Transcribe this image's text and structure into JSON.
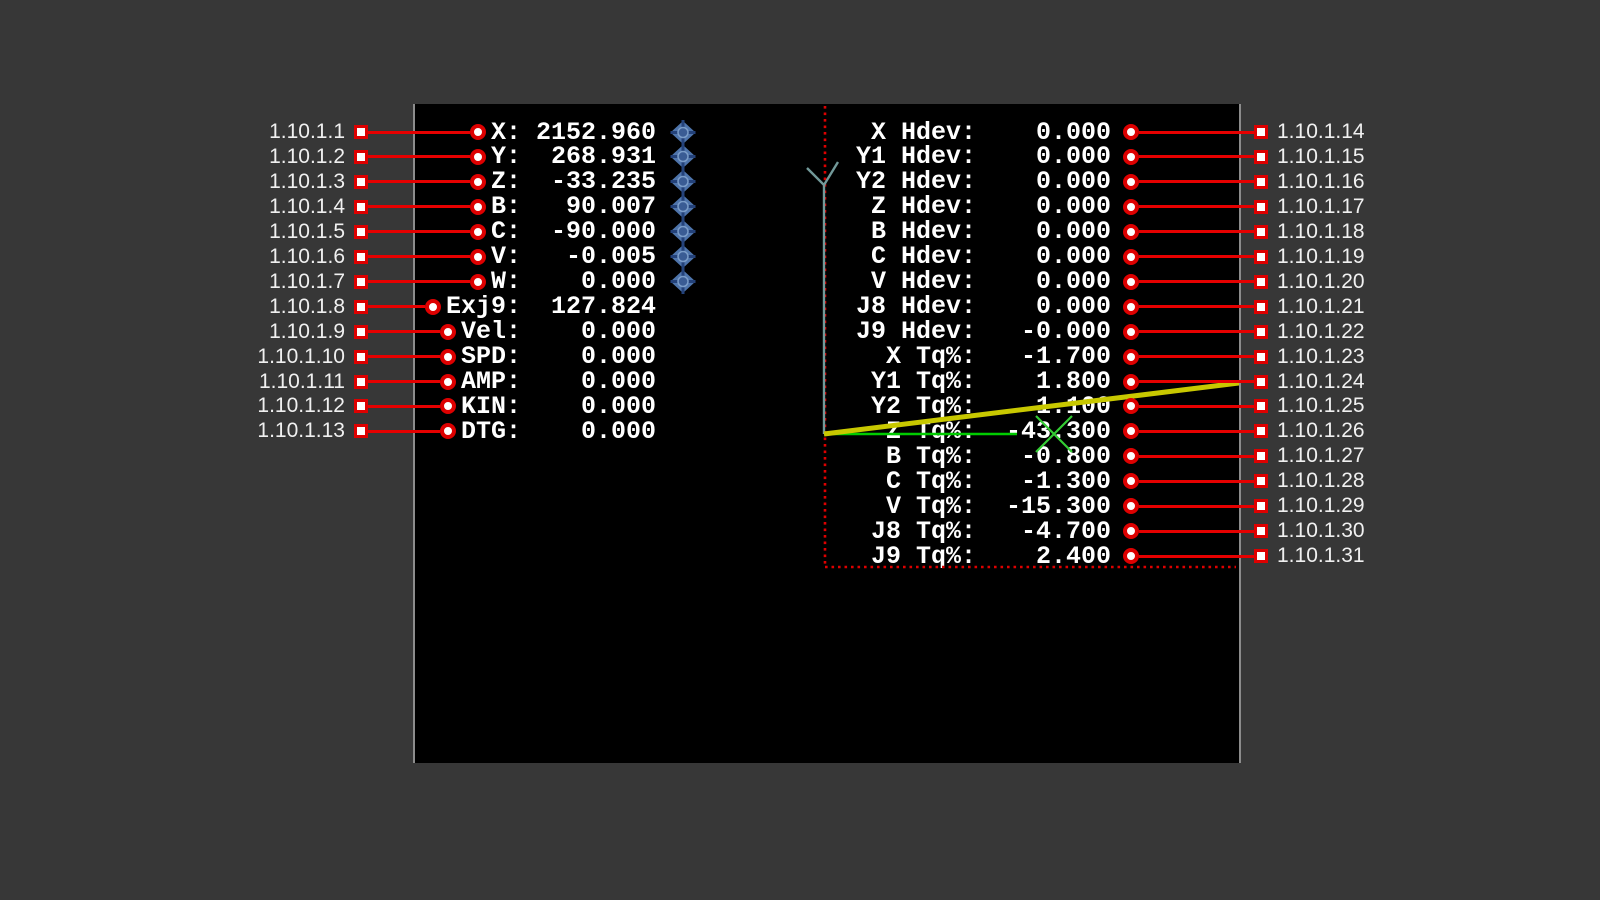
{
  "colors": {
    "background": "#373737",
    "panel_bg": "#000000",
    "panel_border": "#8c8c8c",
    "callout_red": "#e60000",
    "marker_red": "#dd0000",
    "dro_text": "#ffffff",
    "label_text": "#f0f0f0",
    "limit_dotted_red": "#dd0000",
    "axis_teal": "#729999",
    "toolpath_yellow": "#c8c800",
    "feed_green": "#00cc00",
    "marker_green": "#33cc33",
    "jog_fill": "#4e74ab",
    "jog_dark": "#24427a",
    "jog_center": "#3a5c94",
    "jog_rim": "#7a9cc8"
  },
  "icons": {
    "jog_diamond": "jog-diamond-icon",
    "axis_arrow": "axis-arrow-icon",
    "tool_marker": "tool-position-cross-icon"
  },
  "dro_left": {
    "rows": [
      {
        "label": "X:",
        "value": "2152.960",
        "jog_icon": true
      },
      {
        "label": "Y:",
        "value": "268.931",
        "jog_icon": true
      },
      {
        "label": "Z:",
        "value": "-33.235",
        "jog_icon": true
      },
      {
        "label": "B:",
        "value": "90.007",
        "jog_icon": true
      },
      {
        "label": "C:",
        "value": "-90.000",
        "jog_icon": true
      },
      {
        "label": "V:",
        "value": "-0.005",
        "jog_icon": true
      },
      {
        "label": "W:",
        "value": "0.000",
        "jog_icon": true
      },
      {
        "label": "Exj9:",
        "value": "127.824",
        "jog_icon": false
      },
      {
        "label": "Vel:",
        "value": "0.000",
        "jog_icon": false
      },
      {
        "label": "SPD:",
        "value": "0.000",
        "jog_icon": false
      },
      {
        "label": "AMP:",
        "value": "0.000",
        "jog_icon": false
      },
      {
        "label": "KIN:",
        "value": "0.000",
        "jog_icon": false
      },
      {
        "label": "DTG:",
        "value": "0.000",
        "jog_icon": false
      }
    ]
  },
  "dro_right": {
    "rows": [
      {
        "label": "X Hdev:",
        "value": "0.000"
      },
      {
        "label": "Y1 Hdev:",
        "value": "0.000"
      },
      {
        "label": "Y2 Hdev:",
        "value": "0.000"
      },
      {
        "label": "Z Hdev:",
        "value": "0.000"
      },
      {
        "label": "B Hdev:",
        "value": "0.000"
      },
      {
        "label": "C Hdev:",
        "value": "0.000"
      },
      {
        "label": "V Hdev:",
        "value": "0.000"
      },
      {
        "label": "J8 Hdev:",
        "value": "0.000"
      },
      {
        "label": "J9 Hdev:",
        "value": "-0.000"
      },
      {
        "label": "X Tq%:",
        "value": "-1.700"
      },
      {
        "label": "Y1 Tq%:",
        "value": "1.800"
      },
      {
        "label": "Y2 Tq%:",
        "value": "1.100"
      },
      {
        "label": "Z Tq%:",
        "value": "-43.300"
      },
      {
        "label": "B Tq%:",
        "value": "-0.800"
      },
      {
        "label": "C Tq%:",
        "value": "-1.300"
      },
      {
        "label": "V Tq%:",
        "value": "-15.300"
      },
      {
        "label": "J8 Tq%:",
        "value": "-4.700"
      },
      {
        "label": "J9 Tq%:",
        "value": "2.400"
      }
    ]
  },
  "callouts": {
    "left": [
      "1.10.1.1",
      "1.10.1.2",
      "1.10.1.3",
      "1.10.1.4",
      "1.10.1.5",
      "1.10.1.6",
      "1.10.1.7",
      "1.10.1.8",
      "1.10.1.9",
      "1.10.1.10",
      "1.10.1.11",
      "1.10.1.12",
      "1.10.1.13"
    ],
    "right": [
      "1.10.1.14",
      "1.10.1.15",
      "1.10.1.16",
      "1.10.1.17",
      "1.10.1.18",
      "1.10.1.19",
      "1.10.1.20",
      "1.10.1.21",
      "1.10.1.22",
      "1.10.1.23",
      "1.10.1.24",
      "1.10.1.25",
      "1.10.1.26",
      "1.10.1.27",
      "1.10.1.28",
      "1.10.1.29",
      "1.10.1.30",
      "1.10.1.31"
    ]
  }
}
